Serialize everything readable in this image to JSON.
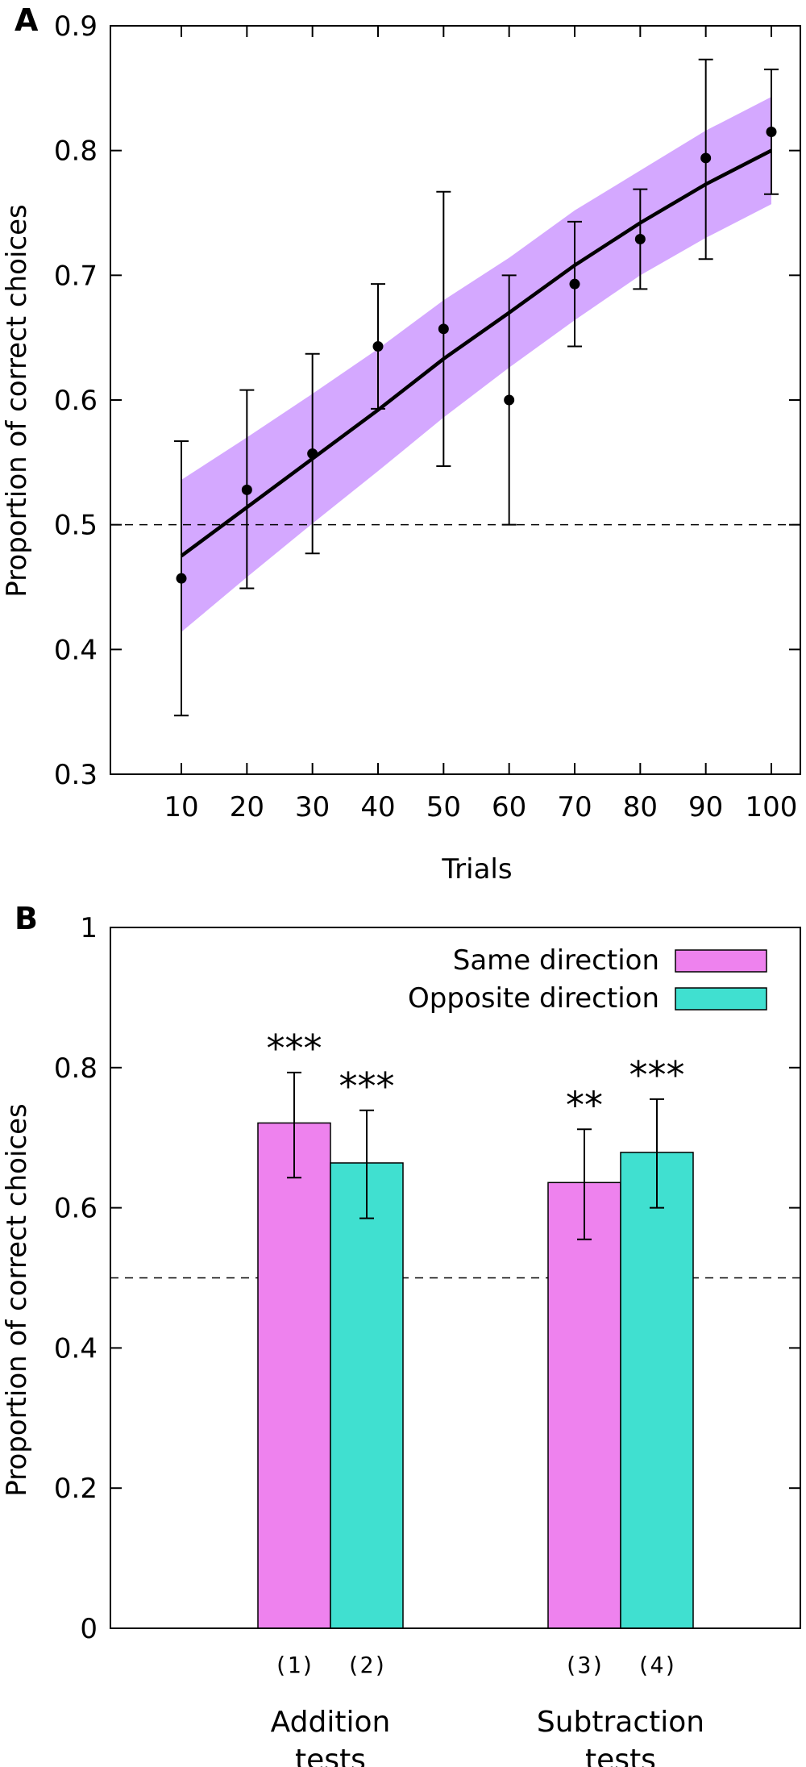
{
  "chart_data": [
    {
      "type": "line",
      "panel_label": "A",
      "xlabel": "Trials",
      "ylabel": "Proportion of correct choices",
      "ylim": [
        0.3,
        0.9
      ],
      "yticks": [
        "0.3",
        "0.4",
        "0.5",
        "0.6",
        "0.7",
        "0.8",
        "0.9"
      ],
      "xticks": [
        "10",
        "20",
        "30",
        "40",
        "50",
        "60",
        "70",
        "80",
        "90",
        "100"
      ],
      "x": [
        10,
        20,
        30,
        40,
        50,
        60,
        70,
        80,
        90,
        100
      ],
      "points": {
        "y": [
          0.457,
          0.528,
          0.557,
          0.643,
          0.657,
          0.6,
          0.693,
          0.729,
          0.794,
          0.815
        ],
        "err_low": [
          0.347,
          0.449,
          0.477,
          0.593,
          0.547,
          0.5,
          0.643,
          0.689,
          0.713,
          0.765
        ],
        "err_high": [
          0.567,
          0.608,
          0.637,
          0.693,
          0.767,
          0.7,
          0.743,
          0.769,
          0.873,
          0.865
        ]
      },
      "fit": {
        "y": [
          0.475,
          0.514,
          0.553,
          0.592,
          0.633,
          0.67,
          0.708,
          0.742,
          0.773,
          0.8
        ],
        "band_low": [
          0.414,
          0.458,
          0.501,
          0.543,
          0.586,
          0.626,
          0.664,
          0.7,
          0.73,
          0.757
        ],
        "band_high": [
          0.536,
          0.57,
          0.605,
          0.641,
          0.68,
          0.714,
          0.752,
          0.784,
          0.816,
          0.843
        ]
      },
      "reference_line": 0.5,
      "colors": {
        "band": "#cc99ff",
        "line": "#000000",
        "points": "#000000"
      }
    },
    {
      "type": "bar",
      "panel_label": "B",
      "ylabel": "Proportion of correct choices",
      "ylim": [
        0,
        1
      ],
      "yticks": [
        "0",
        "0.2",
        "0.4",
        "0.6",
        "0.8",
        "1"
      ],
      "groups": [
        {
          "label_line1": "Addition",
          "label_line2": "tests",
          "bars": [
            {
              "series": 0,
              "number": "(1)",
              "value": 0.721,
              "err_low": 0.643,
              "err_high": 0.793,
              "stars": "***"
            },
            {
              "series": 1,
              "number": "(2)",
              "value": 0.664,
              "err_low": 0.585,
              "err_high": 0.739,
              "stars": "***"
            }
          ]
        },
        {
          "label_line1": "Subtraction",
          "label_line2": "tests",
          "bars": [
            {
              "series": 0,
              "number": "(3)",
              "value": 0.636,
              "err_low": 0.555,
              "err_high": 0.712,
              "stars": "**"
            },
            {
              "series": 1,
              "number": "(4)",
              "value": 0.679,
              "err_low": 0.6,
              "err_high": 0.755,
              "stars": "***"
            }
          ]
        }
      ],
      "series": [
        {
          "name": "Same direction",
          "color": "#ee82ee"
        },
        {
          "name": "Opposite direction",
          "color": "#40e0d0"
        }
      ],
      "legend_position": "top-right",
      "reference_line": 0.5
    }
  ]
}
